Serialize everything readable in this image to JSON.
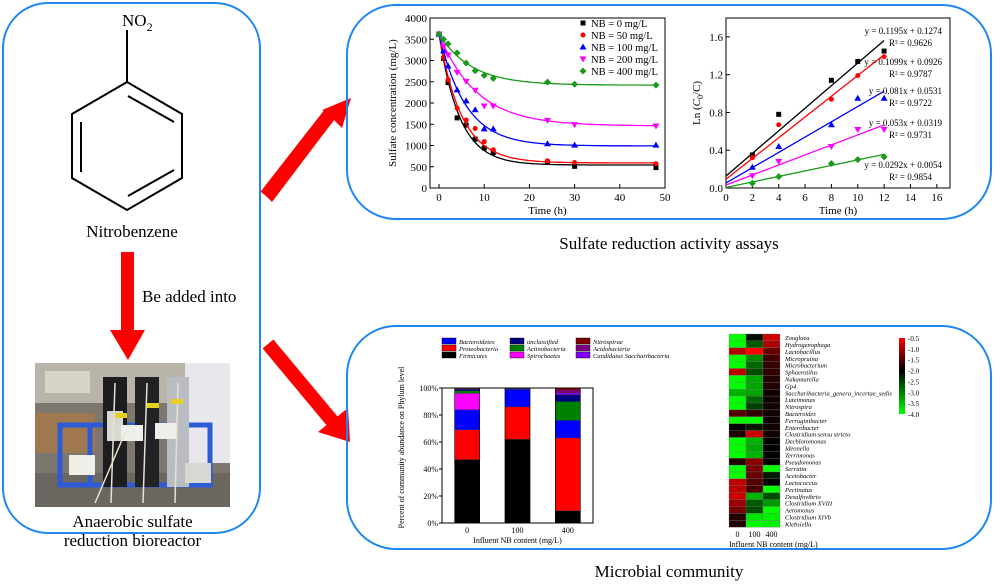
{
  "left_panel": {
    "molecule_group": "NO",
    "molecule_subscript": "2",
    "molecule_name": "Nitrobenzene",
    "arrow_label": "Be added into",
    "bioreactor_caption_line1": "Anaerobic sulfate",
    "bioreactor_caption_line2": "reduction bioreactor"
  },
  "colors": {
    "panel_border": "#1e88f0",
    "arrow": "#ff0000",
    "series": [
      "#000000",
      "#ff0000",
      "#0000ff",
      "#ff00ff",
      "#1a9a1a"
    ]
  },
  "top_caption": "Sulfate reduction activity assays",
  "bottom_caption": "Microbial community",
  "chart_data": [
    {
      "type": "line",
      "id": "sulfate-decay",
      "title": "",
      "xlabel": "Time (h)",
      "ylabel": "Sulfate concentration (mg/L)",
      "xlim": [
        -2,
        50
      ],
      "ylim": [
        0,
        4000
      ],
      "xticks": [
        "0",
        "10",
        "20",
        "30",
        "40",
        "50"
      ],
      "xtick_values": [
        0,
        10,
        20,
        30,
        40,
        50
      ],
      "yticks": [
        "0",
        "500",
        "1000",
        "1500",
        "2000",
        "2500",
        "3000",
        "3500",
        "4000"
      ],
      "ytick_values": [
        0,
        500,
        1000,
        1500,
        2000,
        2500,
        3000,
        3500,
        4000
      ],
      "legend_position": "top-right",
      "x": [
        0,
        1,
        2,
        4,
        6,
        8,
        10,
        12,
        24,
        30,
        48
      ],
      "series": [
        {
          "name": "NB = 0 mg/L",
          "marker": "square",
          "values": [
            3620,
            3050,
            2480,
            1650,
            1480,
            1150,
            940,
            830,
            600,
            510,
            480
          ],
          "fit": {
            "c0": 3620,
            "cinf": 540,
            "k": 0.22
          }
        },
        {
          "name": "NB = 50 mg/L",
          "marker": "circle",
          "values": [
            3620,
            3070,
            2550,
            1880,
            1600,
            1400,
            1090,
            900,
            640,
            600,
            570
          ],
          "fit": {
            "c0": 3620,
            "cinf": 590,
            "k": 0.2
          }
        },
        {
          "name": "NB = 100 mg/L",
          "marker": "triangle-up",
          "values": [
            3620,
            3230,
            2870,
            2310,
            2050,
            1840,
            1390,
            1390,
            1040,
            1010,
            1010
          ],
          "fit": {
            "c0": 3620,
            "cinf": 990,
            "k": 0.17
          }
        },
        {
          "name": "NB = 200 mg/L",
          "marker": "triangle-down",
          "values": [
            3620,
            3330,
            3130,
            2720,
            2510,
            2300,
            1930,
            1930,
            1590,
            1490,
            1460
          ],
          "fit": {
            "c0": 3620,
            "cinf": 1460,
            "k": 0.12
          }
        },
        {
          "name": "NB = 400 mg/L",
          "marker": "diamond",
          "values": [
            3620,
            3500,
            3390,
            3180,
            2940,
            2760,
            2650,
            2580,
            2490,
            2440,
            2420
          ],
          "fit": {
            "c0": 3620,
            "cinf": 2420,
            "k": 0.14
          }
        }
      ]
    },
    {
      "type": "scatter",
      "id": "kinetics-fit",
      "title": "",
      "xlabel": "Time (h)",
      "ylabel_prefix": "Ln (",
      "ylabel_c0": "C",
      "ylabel_c0_sub": "0",
      "ylabel_suffix": "/C)",
      "xlim": [
        0,
        17
      ],
      "ylim": [
        0,
        1.8
      ],
      "xticks": [
        "0",
        "2",
        "4",
        "6",
        "8",
        "10",
        "12",
        "14",
        "16"
      ],
      "xtick_values": [
        0,
        2,
        4,
        6,
        8,
        10,
        12,
        14,
        16
      ],
      "yticks": [
        "0.0",
        "0.4",
        "0.8",
        "1.2",
        "1.6"
      ],
      "ytick_values": [
        0,
        0.4,
        0.8,
        1.2,
        1.6
      ],
      "x": [
        2,
        4,
        8,
        10,
        12
      ],
      "series": [
        {
          "name": "NB = 0 mg/L",
          "marker": "square",
          "values": [
            0.35,
            0.78,
            1.14,
            1.34,
            1.45
          ],
          "slope": 0.1195,
          "intercept": 0.1274,
          "equation": "y = 0.1195x + 0.1274",
          "r2": "R² = 0.9626"
        },
        {
          "name": "NB = 50 mg/L",
          "marker": "circle",
          "values": [
            0.32,
            0.67,
            0.94,
            1.19,
            1.39
          ],
          "slope": 0.1099,
          "intercept": 0.0926,
          "equation": "y = 0.1099x + 0.0926",
          "r2": "R² = 0.9787"
        },
        {
          "name": "NB = 100 mg/L",
          "marker": "triangle-up",
          "values": [
            0.22,
            0.44,
            0.67,
            0.95,
            0.95
          ],
          "slope": 0.081,
          "intercept": 0.0531,
          "equation": "y = 0.081x + 0.0531",
          "r2": "R² = 0.9722"
        },
        {
          "name": "NB = 200 mg/L",
          "marker": "triangle-down",
          "values": [
            0.13,
            0.28,
            0.44,
            0.62,
            0.62
          ],
          "slope": 0.053,
          "intercept": 0.0319,
          "equation": "y = 0.053x + 0.0319",
          "r2": "R² = 0.9731"
        },
        {
          "name": "NB = 400 mg/L",
          "marker": "diamond",
          "values": [
            0.05,
            0.12,
            0.26,
            0.3,
            0.33
          ],
          "slope": 0.0292,
          "intercept": 0.0054,
          "equation": "y = 0.0292x + 0.0054",
          "r2": "R² = 0.9854"
        }
      ]
    },
    {
      "type": "bar",
      "stacked": true,
      "id": "phylum-abundance",
      "xlabel": "Influent NB content (mg/L)",
      "ylabel": "Percent of community abundance on Phylum level",
      "categories": [
        "0",
        "100",
        "400"
      ],
      "ylim": [
        0,
        100
      ],
      "yticks": [
        "0%",
        "20%",
        "40%",
        "60%",
        "80%",
        "100%"
      ],
      "ytick_values": [
        0,
        20,
        40,
        60,
        80,
        100
      ],
      "legend_position": "top",
      "series": [
        {
          "name": "Firmicutes",
          "color": "#000000",
          "values": [
            47,
            62,
            9
          ]
        },
        {
          "name": "Proteobacteria",
          "color": "#ff0000",
          "values": [
            22,
            24,
            54
          ]
        },
        {
          "name": "Bacteroidetes",
          "color": "#0000ff",
          "values": [
            15,
            13,
            13
          ]
        },
        {
          "name": "Spirochaetes",
          "color": "#ff00ff",
          "values": [
            12,
            0,
            0
          ]
        },
        {
          "name": "Actinobacteria",
          "color": "#008000",
          "values": [
            2,
            0.5,
            14
          ]
        },
        {
          "name": "unclassified",
          "color": "#000080",
          "values": [
            1,
            0.5,
            5
          ]
        },
        {
          "name": "Candidatus Saccharibacteria",
          "color": "#8000ff",
          "values": [
            0.5,
            0,
            1.5
          ]
        },
        {
          "name": "Acidobacteria",
          "color": "#800080",
          "values": [
            0.3,
            0,
            2
          ]
        },
        {
          "name": "Nitrospirae",
          "color": "#800000",
          "values": [
            0.2,
            0,
            1.5
          ]
        }
      ],
      "legend_order": [
        "Bacteroidetes",
        "Proteobacteria",
        "Firmicutes",
        "unclassified",
        "Actinobacteria",
        "Spirochaetes",
        "Nitrospirae",
        "Acidobacteria",
        "Candidatus Saccharibacteria"
      ]
    },
    {
      "type": "heatmap",
      "id": "genus-heatmap",
      "xlabel": "Influent NB content (mg/L)",
      "columns": [
        "0",
        "100",
        "400"
      ],
      "colorbar_range": [
        -4.0,
        -0.5
      ],
      "colorbar_ticks": [
        "-0.5",
        "-1.0",
        "-1.5",
        "-2.0",
        "-2.5",
        "-3.0",
        "-3.5",
        "-4.0"
      ],
      "colorbar_tick_values": [
        -0.5,
        -1.0,
        -1.5,
        -2.0,
        -2.5,
        -3.0,
        -3.5,
        -4.0
      ],
      "rows": [
        "Zoogloea",
        "Hydrogenophaga",
        "Lactobacillus",
        "Micropruina",
        "Microbacterium",
        "Sphaerotilus",
        "Nakamurella",
        "Gp4",
        "Saccharibacteria_genera_incertae_sedis",
        "Luteimonas",
        "Nitrospira",
        "Bacteroides",
        "Ferruginibacter",
        "Enterobacter",
        "Clostridium sensu stricto",
        "Dechloromonas",
        "Ideonella",
        "Terrimonas",
        "Pseudomonas",
        "Serratia",
        "Acetobacter",
        "Lactococcus",
        "Pectinatus",
        "Desulfovibrio",
        "Clostridium XVIII",
        "Aeromonas",
        "Clostridium XIVb",
        "Klebsiella"
      ],
      "values": [
        [
          -4.0,
          -2.1,
          -0.8
        ],
        [
          -4.0,
          -2.7,
          -1.0
        ],
        [
          -0.9,
          -0.5,
          -1.4
        ],
        [
          -4.0,
          -3.1,
          -1.6
        ],
        [
          -4.0,
          -2.8,
          -1.7
        ],
        [
          -0.9,
          -2.6,
          -1.7
        ],
        [
          -4.0,
          -3.3,
          -1.8
        ],
        [
          -4.0,
          -3.3,
          -1.8
        ],
        [
          -3.4,
          -3.3,
          -1.9
        ],
        [
          -4.0,
          -2.8,
          -1.9
        ],
        [
          -4.0,
          -2.5,
          -1.9
        ],
        [
          -1.5,
          -1.7,
          -1.9
        ],
        [
          -4.0,
          -4.0,
          -1.9
        ],
        [
          -2.0,
          -2.2,
          -1.9
        ],
        [
          -1.8,
          -0.8,
          -1.9
        ],
        [
          -4.0,
          -3.4,
          -2.0
        ],
        [
          -4.0,
          -3.3,
          -2.0
        ],
        [
          -4.0,
          -3.4,
          -2.0
        ],
        [
          -1.8,
          -1.2,
          -2.0
        ],
        [
          -4.0,
          -1.3,
          -4.0
        ],
        [
          -4.0,
          -1.4,
          -2.2
        ],
        [
          -0.9,
          -1.5,
          -2.0
        ],
        [
          -0.9,
          -1.6,
          -4.0
        ],
        [
          -0.8,
          -3.4,
          -2.6
        ],
        [
          -1.1,
          -2.7,
          -3.2
        ],
        [
          -1.3,
          -2.6,
          -4.0
        ],
        [
          -1.8,
          -3.8,
          -3.9
        ],
        [
          -1.8,
          -4.0,
          -3.9
        ]
      ]
    }
  ]
}
